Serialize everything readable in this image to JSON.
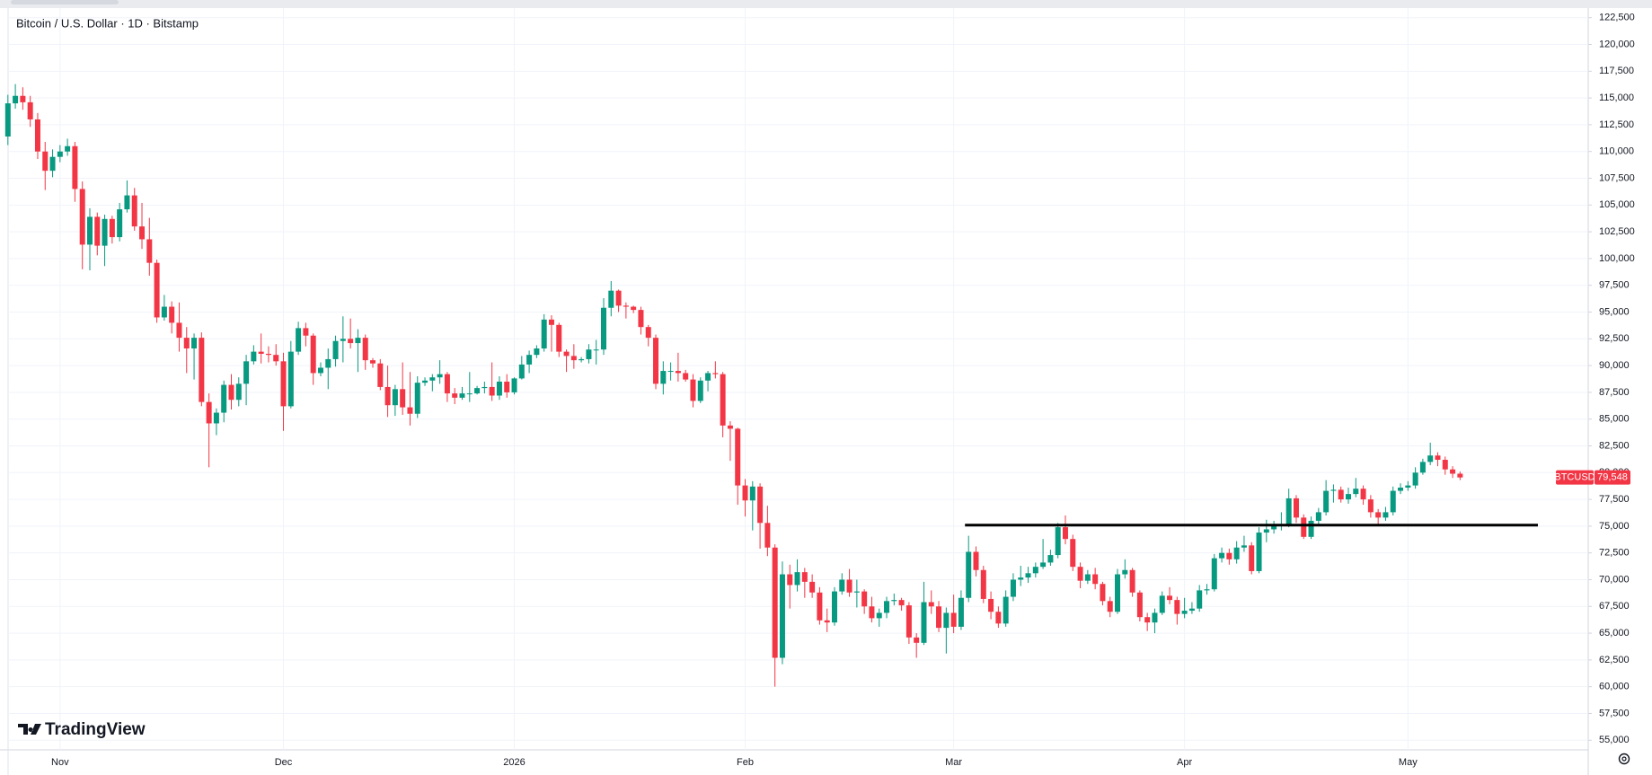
{
  "chart_data": {
    "type": "candlestick",
    "title": "Bitcoin / U.S. Dollar · 1D · Bitstamp",
    "brand": "TradingView",
    "categories": [
      null,
      null,
      null,
      null,
      null,
      null,
      null,
      "Nov",
      null,
      null,
      null,
      null,
      null,
      null,
      null,
      null,
      null,
      null,
      null,
      null,
      null,
      null,
      null,
      null,
      null,
      null,
      null,
      null,
      null,
      null,
      null,
      null,
      null,
      null,
      null,
      null,
      null,
      "Dec",
      null,
      null,
      null,
      null,
      null,
      null,
      null,
      null,
      null,
      null,
      null,
      null,
      null,
      null,
      null,
      null,
      null,
      null,
      null,
      null,
      null,
      null,
      null,
      null,
      null,
      null,
      null,
      null,
      null,
      null,
      "2026",
      null,
      null,
      null,
      null,
      null,
      null,
      null,
      null,
      null,
      null,
      null,
      null,
      null,
      null,
      null,
      null,
      null,
      null,
      null,
      null,
      null,
      null,
      null,
      null,
      null,
      null,
      null,
      null,
      null,
      null,
      "Feb",
      null,
      null,
      null,
      null,
      null,
      null,
      null,
      null,
      null,
      null,
      null,
      null,
      null,
      null,
      null,
      null,
      null,
      null,
      null,
      null,
      null,
      null,
      null,
      null,
      null,
      null,
      null,
      "Mar",
      null,
      null,
      null,
      null,
      null,
      null,
      null,
      null,
      null,
      null,
      null,
      null,
      null,
      null,
      null,
      null,
      null,
      null,
      null,
      null,
      null,
      null,
      null,
      null,
      null,
      null,
      null,
      null,
      null,
      null,
      "Apr",
      null,
      null,
      null,
      null,
      null,
      null,
      null,
      null,
      null,
      null,
      null,
      null,
      null,
      null,
      null,
      null,
      null,
      null,
      null,
      null,
      null,
      null,
      null,
      null,
      null,
      null,
      null,
      null,
      null,
      "May",
      null,
      null,
      null,
      null,
      null,
      null,
      null
    ],
    "series": [
      {
        "name": "BTCUSD",
        "up_color": "#089981",
        "down_color": "#f23645",
        "last_label": "79,548",
        "open": [
          111400,
          114500,
          115200,
          114600,
          113000,
          110000,
          108200,
          109500,
          110000,
          110500,
          106500,
          101300,
          103900,
          101200,
          103700,
          102000,
          104600,
          105900,
          103000,
          101800,
          99600,
          94500,
          95500,
          94000,
          92600,
          91600,
          92600,
          86600,
          84600,
          85600,
          88200,
          86800,
          88300,
          90400,
          91300,
          91100,
          91000,
          90400,
          86200,
          91300,
          93500,
          92800,
          89300,
          89800,
          90600,
          92300,
          92500,
          92100,
          92600,
          90500,
          90200,
          88000,
          86300,
          87800,
          86100,
          85500,
          88400,
          88600,
          88900,
          89200,
          87400,
          87000,
          87400,
          87400,
          87900,
          88000,
          87200,
          88500,
          87500,
          88800,
          90100,
          91000,
          91600,
          94300,
          93800,
          91300,
          90900,
          90500,
          90600,
          91500,
          91500,
          95400,
          97000,
          95600,
          95500,
          95200,
          93600,
          92600,
          88300,
          89500,
          89500,
          89300,
          88700,
          86700,
          88600,
          89300,
          89200,
          84400,
          84100,
          78800,
          77400,
          78700,
          75300,
          73000,
          62700,
          70500,
          69500,
          70700,
          69800,
          68800,
          66200,
          66000,
          68900,
          70000,
          68800,
          68900,
          67500,
          66400,
          66900,
          68000,
          68100,
          67600,
          64600,
          64100,
          67900,
          67500,
          65500,
          66900,
          65600,
          68300,
          72600,
          70900,
          68200,
          67000,
          65900,
          68400,
          70000,
          70200,
          70600,
          71200,
          71600,
          72300,
          74900,
          73800,
          71200,
          69900,
          70500,
          69600,
          68000,
          67000,
          70500,
          70900,
          68800,
          66500,
          66000,
          66900,
          68500,
          68100,
          66800,
          67100,
          67300,
          69000,
          69100,
          72000,
          72500,
          71900,
          73000,
          73200,
          70800,
          74400,
          74700,
          75000,
          75200,
          77600,
          75800,
          74000,
          75500,
          76300,
          78300,
          78400,
          77500,
          78000,
          78500,
          77500,
          76300,
          75800,
          76300,
          78300,
          78600,
          78800,
          80000,
          81000,
          81600,
          81200,
          80300,
          79900
        ],
        "high": [
          115300,
          116300,
          116000,
          115200,
          113600,
          110900,
          110200,
          110600,
          111200,
          110900,
          107200,
          104700,
          104300,
          104100,
          104000,
          105200,
          107300,
          106600,
          105200,
          103800,
          99900,
          96600,
          96000,
          95900,
          93600,
          93000,
          93100,
          87400,
          86000,
          88600,
          89200,
          88900,
          91000,
          91900,
          93000,
          91800,
          92000,
          91200,
          92300,
          94100,
          94000,
          93000,
          90300,
          91600,
          92800,
          94600,
          94400,
          93400,
          92900,
          90700,
          90600,
          90000,
          88200,
          90300,
          89400,
          89000,
          88900,
          89200,
          90500,
          89400,
          87900,
          88000,
          89400,
          88100,
          88500,
          90300,
          89000,
          89200,
          88900,
          90900,
          91400,
          91900,
          94800,
          94700,
          94000,
          91500,
          92000,
          90800,
          92000,
          92400,
          96300,
          97900,
          97100,
          95900,
          95600,
          95500,
          93800,
          92900,
          90400,
          90300,
          91200,
          89600,
          89200,
          88900,
          89500,
          90400,
          89400,
          84800,
          84200,
          79400,
          79200,
          79000,
          76900,
          73300,
          71700,
          71400,
          71900,
          71100,
          70500,
          69300,
          67300,
          69300,
          70600,
          71000,
          70000,
          69100,
          68400,
          67300,
          68400,
          68700,
          68300,
          67900,
          65000,
          69800,
          69000,
          68000,
          67400,
          68600,
          69000,
          74100,
          73100,
          71300,
          68900,
          67500,
          69000,
          70600,
          71300,
          71200,
          71600,
          73800,
          72800,
          75300,
          76000,
          74200,
          71600,
          70900,
          71100,
          69800,
          68400,
          71000,
          71900,
          71100,
          69000,
          66900,
          67300,
          68900,
          69300,
          68400,
          68300,
          67900,
          69500,
          69600,
          72400,
          73000,
          72900,
          73600,
          74100,
          73500,
          74900,
          75600,
          75500,
          76300,
          78500,
          77900,
          76100,
          75900,
          76700,
          79300,
          78900,
          78700,
          78600,
          79500,
          78800,
          77900,
          76600,
          76800,
          78700,
          79000,
          79200,
          80500,
          81300,
          82800,
          81900,
          81500,
          80600,
          80100
        ],
        "low": [
          110600,
          114000,
          113900,
          112300,
          109300,
          106400,
          107600,
          109000,
          109600,
          105300,
          99000,
          98900,
          100300,
          99300,
          101400,
          101600,
          104300,
          102600,
          100900,
          98400,
          94000,
          94200,
          93000,
          91300,
          89300,
          88700,
          86200,
          80500,
          83500,
          84700,
          85900,
          86200,
          86300,
          90100,
          90200,
          90300,
          90000,
          83900,
          86000,
          91000,
          91800,
          88200,
          89000,
          87800,
          89900,
          90300,
          91600,
          89400,
          89600,
          89800,
          87700,
          85200,
          85300,
          85400,
          84400,
          85100,
          88100,
          87600,
          88300,
          86600,
          86400,
          86800,
          86600,
          87300,
          87400,
          86700,
          86800,
          87000,
          87300,
          88700,
          89300,
          90700,
          91300,
          91300,
          90800,
          89400,
          89700,
          90300,
          90200,
          90100,
          91000,
          94600,
          95000,
          94400,
          94900,
          92900,
          91800,
          87800,
          87300,
          88600,
          88500,
          88500,
          86100,
          86500,
          87600,
          88800,
          83300,
          81100,
          77000,
          75900,
          74600,
          72900,
          72200,
          60000,
          62100,
          67300,
          68900,
          68300,
          68300,
          65800,
          65100,
          65700,
          68600,
          68400,
          67400,
          66800,
          66000,
          65600,
          66400,
          67600,
          67100,
          64000,
          62700,
          63900,
          66800,
          65100,
          63100,
          65000,
          65300,
          67900,
          70300,
          67800,
          66300,
          65500,
          65600,
          68000,
          69400,
          69700,
          70200,
          71000,
          71300,
          72000,
          73300,
          70800,
          69200,
          69600,
          69100,
          67600,
          66500,
          66800,
          70100,
          68400,
          66100,
          65200,
          65000,
          66700,
          67700,
          65800,
          66400,
          66800,
          67000,
          68600,
          68900,
          71600,
          71400,
          71500,
          72600,
          70500,
          70600,
          73500,
          74300,
          74600,
          74900,
          75300,
          73800,
          73800,
          75100,
          76000,
          77200,
          77200,
          77100,
          77700,
          77000,
          75800,
          75200,
          75500,
          76000,
          78000,
          78300,
          78500,
          79800,
          80700,
          80600,
          79800,
          79500,
          79300
        ],
        "close": [
          114500,
          115200,
          114600,
          113000,
          110000,
          108200,
          109500,
          110000,
          110500,
          106500,
          101300,
          103900,
          101200,
          103700,
          102000,
          104600,
          105900,
          103000,
          101800,
          99600,
          94500,
          95500,
          94000,
          92600,
          91600,
          92600,
          86600,
          84600,
          85600,
          88200,
          86800,
          88300,
          90400,
          91300,
          91100,
          91000,
          90400,
          86200,
          91300,
          93500,
          92800,
          89300,
          89800,
          90600,
          92300,
          92500,
          92100,
          92600,
          90500,
          90200,
          88000,
          86300,
          87800,
          86100,
          85500,
          88400,
          88600,
          88900,
          89200,
          87400,
          87000,
          87400,
          87400,
          87900,
          88000,
          87200,
          88500,
          87500,
          88800,
          90100,
          91000,
          91600,
          94300,
          93800,
          91300,
          90900,
          90500,
          90600,
          91500,
          91500,
          95400,
          97000,
          95600,
          95500,
          95200,
          93600,
          92600,
          88300,
          89500,
          89500,
          89300,
          88700,
          86700,
          88600,
          89300,
          89200,
          84400,
          84100,
          78800,
          77400,
          78700,
          75300,
          73000,
          62700,
          70500,
          69500,
          70700,
          69800,
          68800,
          66200,
          66000,
          68900,
          70000,
          68800,
          68900,
          67500,
          66400,
          66900,
          68000,
          68100,
          67600,
          64600,
          64100,
          67900,
          67500,
          65500,
          66900,
          65600,
          68300,
          72600,
          70900,
          68200,
          67000,
          65900,
          68400,
          70000,
          70200,
          70600,
          71200,
          71600,
          72300,
          74900,
          73800,
          71200,
          69900,
          70500,
          69600,
          68000,
          67000,
          70500,
          70900,
          68800,
          66500,
          66000,
          66900,
          68500,
          68100,
          66800,
          67100,
          67300,
          69000,
          69100,
          72000,
          72500,
          71900,
          73000,
          73200,
          70800,
          74400,
          74700,
          75000,
          75200,
          77600,
          75800,
          74000,
          75500,
          76300,
          78300,
          78400,
          77500,
          78000,
          78500,
          77500,
          76300,
          75800,
          76300,
          78300,
          78600,
          78800,
          80000,
          81000,
          81600,
          81200,
          80300,
          79900,
          79548
        ]
      }
    ],
    "hline": {
      "value": 75100,
      "color": "#000000"
    },
    "ylim": [
      54100,
      123400
    ],
    "yticks": [
      {
        "value": 55000,
        "label": "55,000"
      },
      {
        "value": 57500,
        "label": "57,500"
      },
      {
        "value": 60000,
        "label": "60,000"
      },
      {
        "value": 62500,
        "label": "62,500"
      },
      {
        "value": 65000,
        "label": "65,000"
      },
      {
        "value": 67500,
        "label": "67,500"
      },
      {
        "value": 70000,
        "label": "70,000"
      },
      {
        "value": 72500,
        "label": "72,500"
      },
      {
        "value": 75000,
        "label": "75,000"
      },
      {
        "value": 77500,
        "label": "77,500"
      },
      {
        "value": 80000,
        "label": "80,000"
      },
      {
        "value": 82500,
        "label": "82,500"
      },
      {
        "value": 85000,
        "label": "85,000"
      },
      {
        "value": 87500,
        "label": "87,500"
      },
      {
        "value": 90000,
        "label": "90,000"
      },
      {
        "value": 92500,
        "label": "92,500"
      },
      {
        "value": 95000,
        "label": "95,000"
      },
      {
        "value": 97500,
        "label": "97,500"
      },
      {
        "value": 100000,
        "label": "100,000"
      },
      {
        "value": 102500,
        "label": "102,500"
      },
      {
        "value": 105000,
        "label": "105,000"
      },
      {
        "value": 107500,
        "label": "107,500"
      },
      {
        "value": 110000,
        "label": "110,000"
      },
      {
        "value": 112500,
        "label": "112,500"
      },
      {
        "value": 115000,
        "label": "115,000"
      },
      {
        "value": 117500,
        "label": "117,500"
      },
      {
        "value": 120000,
        "label": "120,000"
      },
      {
        "value": 122500,
        "label": "122,500"
      }
    ],
    "grid": true
  }
}
